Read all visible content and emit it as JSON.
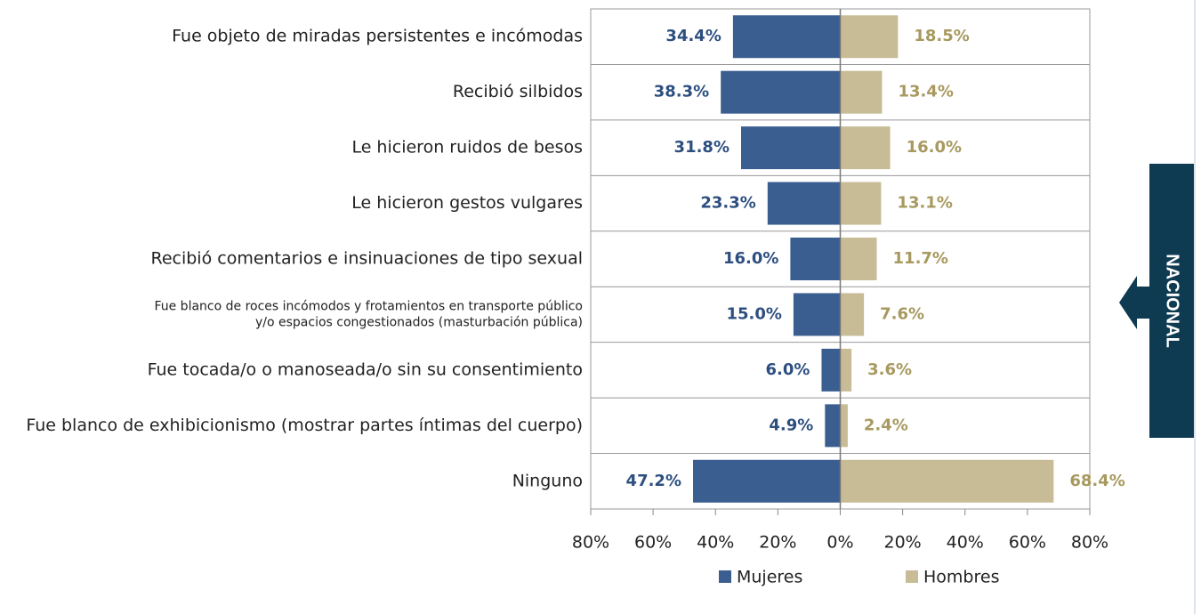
{
  "chart_data": {
    "type": "diverging_bar",
    "categories": [
      "Fue objeto de miradas persistentes e incómodas",
      "Recibió silbidos",
      "Le hicieron ruidos de besos",
      "Le hicieron gestos vulgares",
      "Recibió comentarios e insinuaciones de tipo sexual",
      "Fue blanco de roces incómodos y frotamientos en transporte público\ny/o espacios congestionados  (masturbación pública)",
      "Fue tocada/o  o manoseada/o sin su consentimiento",
      "Fue blanco de exhibicionismo (mostrar partes íntimas del cuerpo)",
      "Ninguno"
    ],
    "series": [
      {
        "name": "Mujeres",
        "color": "#3b5e91",
        "values": [
          34.4,
          38.3,
          31.8,
          23.3,
          16.0,
          15.0,
          6.0,
          4.9,
          47.2
        ],
        "value_labels": [
          "34.4%",
          "38.3%",
          "31.8%",
          "23.3%",
          "16.0%",
          "15.0%",
          "6.0%",
          "4.9%",
          "47.2%"
        ]
      },
      {
        "name": "Hombres",
        "color": "#c7bc96",
        "values": [
          18.5,
          13.4,
          16.0,
          13.1,
          11.7,
          7.6,
          3.6,
          2.4,
          68.4
        ],
        "value_labels": [
          "18.5%",
          "13.4%",
          "16.0%",
          "13.1%",
          "11.7%",
          "7.6%",
          "3.6%",
          "2.4%",
          "68.4%"
        ]
      }
    ],
    "xlim": [
      -80,
      80
    ],
    "xticks": [
      {
        "value": -80,
        "label": "80%"
      },
      {
        "value": -60,
        "label": "60%"
      },
      {
        "value": -40,
        "label": "40%"
      },
      {
        "value": -20,
        "label": "20%"
      },
      {
        "value": 0,
        "label": "0%"
      },
      {
        "value": 20,
        "label": "20%"
      },
      {
        "value": 40,
        "label": "40%"
      },
      {
        "value": 60,
        "label": "60%"
      },
      {
        "value": 80,
        "label": "80%"
      }
    ],
    "side_label": "NACIONAL"
  }
}
